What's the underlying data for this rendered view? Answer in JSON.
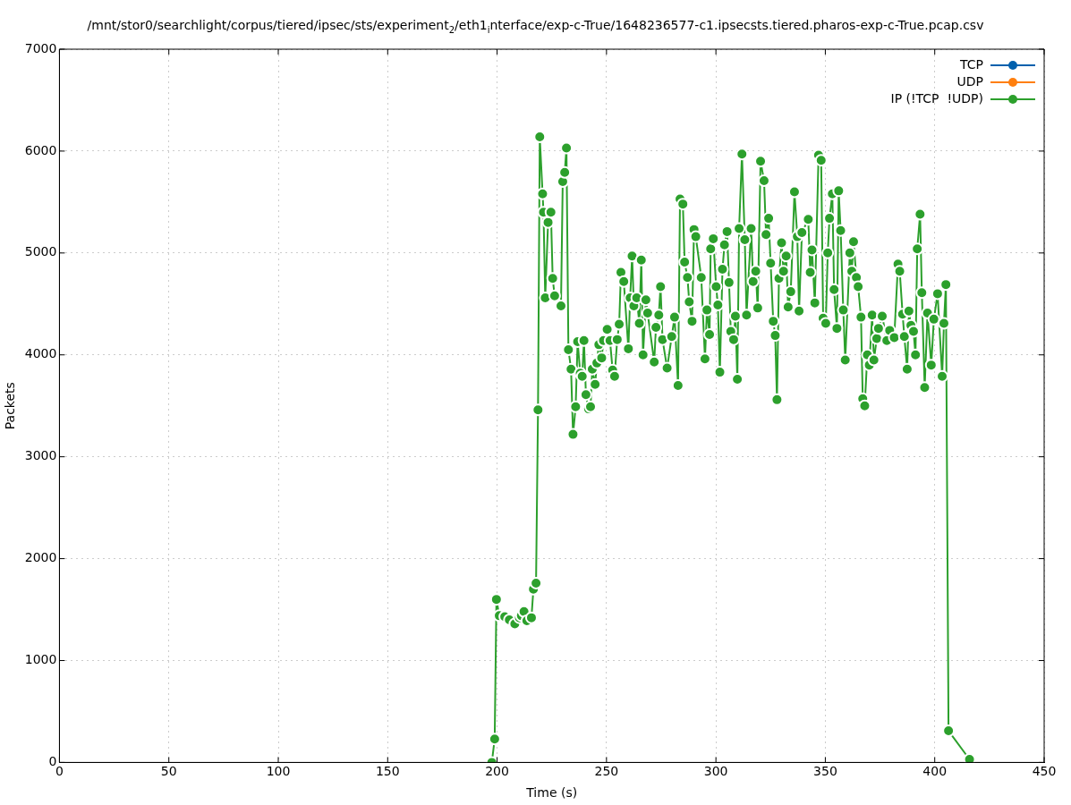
{
  "chart_data": {
    "type": "line",
    "title": "/mnt/stor0/searchlight/corpus/tiered/ipsec/sts/experiment$_{2}$/eth1$_{i}$nterface/exp-c-True/1648236577-c1.ipsecsts.tiered.pharos-exp-c-True.pcap.csv",
    "xlabel": "Time (s)",
    "ylabel": "Packets",
    "xlim": [
      0,
      450
    ],
    "xticks": [
      0,
      50,
      100,
      150,
      200,
      250,
      300,
      350,
      400,
      450
    ],
    "ylim": [
      0,
      7000
    ],
    "yticks": [
      0,
      1000,
      2000,
      3000,
      4000,
      5000,
      6000,
      7000
    ],
    "grid": true,
    "legend": "top right",
    "marker": "circle",
    "line_style": "solid",
    "series": [
      {
        "name": "TCP",
        "color": "#0060ad"
      },
      {
        "name": "UDP",
        "color": "#ff7f0e"
      },
      {
        "name": "IP (!TCP  !UDP)",
        "color": "#2ca02c",
        "x": [
          197.6,
          198.9,
          199.7,
          201.0,
          203.5,
          205.6,
          208.1,
          210.2,
          211.1,
          212.3,
          213.6,
          215.7,
          216.6,
          217.8,
          218.7,
          219.5,
          220.8,
          221.2,
          222.0,
          223.3,
          224.6,
          225.4,
          226.3,
          229.2,
          230.0,
          230.9,
          231.7,
          232.6,
          233.8,
          234.7,
          235.9,
          236.8,
          238.0,
          238.9,
          239.7,
          240.6,
          241.8,
          242.7,
          243.5,
          244.8,
          245.6,
          246.5,
          247.8,
          248.6,
          250.3,
          251.6,
          252.8,
          253.7,
          254.9,
          255.8,
          256.6,
          257.9,
          260.0,
          260.8,
          261.7,
          262.5,
          263.8,
          265.0,
          265.9,
          266.7,
          268.0,
          268.8,
          271.8,
          272.6,
          273.9,
          274.7,
          275.6,
          277.7,
          279.8,
          281.1,
          282.7,
          283.6,
          284.9,
          285.7,
          287.0,
          287.8,
          289.1,
          290.0,
          290.8,
          293.3,
          295.0,
          295.9,
          297.1,
          297.6,
          298.8,
          300.1,
          300.9,
          301.8,
          303.0,
          303.9,
          305.1,
          306.0,
          306.8,
          308.1,
          308.9,
          309.8,
          310.6,
          311.9,
          313.2,
          314.0,
          316.1,
          317.0,
          318.2,
          319.1,
          320.4,
          322.0,
          322.9,
          324.1,
          325.0,
          326.2,
          327.1,
          327.9,
          328.8,
          330.0,
          330.9,
          332.1,
          333.0,
          334.2,
          335.9,
          337.2,
          338.0,
          339.3,
          342.2,
          343.1,
          343.9,
          345.2,
          346.9,
          348.1,
          349.0,
          350.2,
          351.1,
          351.9,
          353.2,
          354.0,
          355.3,
          356.1,
          357.0,
          358.2,
          359.1,
          361.2,
          362.1,
          362.9,
          364.2,
          365.0,
          366.3,
          367.1,
          368.0,
          369.2,
          370.1,
          371.4,
          372.2,
          373.5,
          374.3,
          376.0,
          378.1,
          379.4,
          381.5,
          383.2,
          384.0,
          385.3,
          386.1,
          387.4,
          388.2,
          389.1,
          390.3,
          391.2,
          392.0,
          393.3,
          394.1,
          395.4,
          396.7,
          398.4,
          399.6,
          401.3,
          403.4,
          404.2,
          405.1,
          406.3,
          415.9
        ],
        "values": [
          0,
          230,
          1600,
          1440,
          1430,
          1400,
          1360,
          1420,
          1440,
          1480,
          1390,
          1420,
          1700,
          1760,
          3460,
          6140,
          5580,
          5400,
          4560,
          5300,
          5400,
          4750,
          4580,
          4480,
          5700,
          5790,
          6030,
          4050,
          3860,
          3220,
          3490,
          4130,
          3820,
          3790,
          4140,
          3610,
          3470,
          3490,
          3860,
          3710,
          3920,
          4100,
          3970,
          4140,
          4250,
          4140,
          3850,
          3790,
          4150,
          4300,
          4810,
          4720,
          4060,
          4560,
          4970,
          4480,
          4560,
          4310,
          4930,
          4000,
          4540,
          4410,
          3930,
          4270,
          4390,
          4670,
          4150,
          3870,
          4180,
          4370,
          3700,
          5530,
          5480,
          4910,
          4760,
          4520,
          4330,
          5230,
          5160,
          4760,
          3960,
          4440,
          4200,
          5040,
          5140,
          4670,
          4490,
          3830,
          4840,
          5080,
          5210,
          4710,
          4230,
          4150,
          4380,
          3760,
          5240,
          5970,
          5130,
          4390,
          5240,
          4720,
          4820,
          4460,
          5900,
          5710,
          5180,
          5340,
          4900,
          4330,
          4190,
          3560,
          4750,
          5100,
          4820,
          4970,
          4470,
          4620,
          5600,
          5160,
          4430,
          5200,
          5330,
          4810,
          5030,
          4510,
          5960,
          5910,
          4360,
          4310,
          5000,
          5340,
          5580,
          4640,
          4260,
          5610,
          5220,
          4440,
          3950,
          5000,
          4820,
          5110,
          4760,
          4670,
          4370,
          3570,
          3500,
          4000,
          3900,
          4390,
          3950,
          4160,
          4260,
          4380,
          4140,
          4240,
          4170,
          4890,
          4820,
          4400,
          4180,
          3860,
          4430,
          4290,
          4230,
          4000,
          5040,
          5380,
          4610,
          3680,
          4410,
          3900,
          4350,
          4600,
          3790,
          4310,
          4690,
          310,
          30
        ]
      }
    ]
  }
}
